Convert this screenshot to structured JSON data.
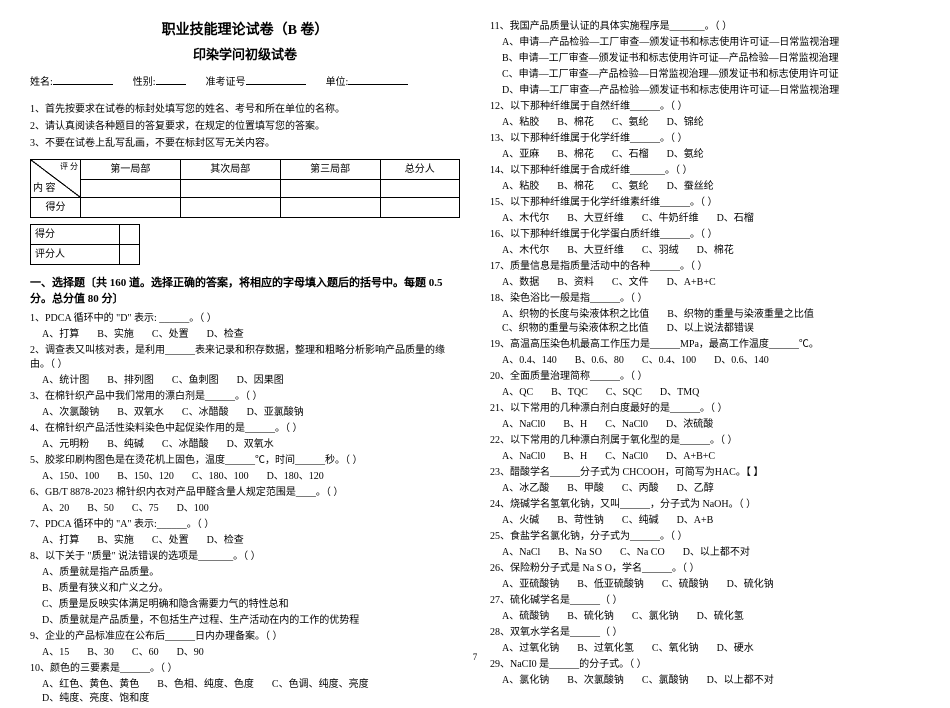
{
  "header": {
    "title1": "职业技能理论试卷（B 卷）",
    "title2": "印染学问初级试卷",
    "meta": {
      "name_label": "姓名:",
      "gender_label": "性别:",
      "exam_id_label": "准考证号",
      "unit_label": "单位:"
    }
  },
  "instructions": {
    "l1": "1、首先按要求在试卷的标封处填写您的姓名、考号和所在单位的名称。",
    "l2": "2、请认真阅读各种题目的答复要求，在规定的位置填写您的答案。",
    "l3": "3、不要在试卷上乱写乱画，不要在标封区写无关内容。"
  },
  "score_table": {
    "h0": "内 容",
    "h1": "第一局部",
    "h2": "其次局部",
    "h3": "第三局部",
    "h4": "总分人",
    "row_score": "得分",
    "pingfen": "评 分",
    "deifen": "得分",
    "pingfenren": "评分人"
  },
  "section1": {
    "title": "一、选择题〔共 160 道。选择正确的答案，将相应的字母填入题后的括号中。每题 0.5 分。总分值 80 分〕"
  },
  "questions_left": [
    {
      "n": "1",
      "t": "PDCA 循环中的 \"D\" 表示: ______。（  ）",
      "opts": [
        "A、打算",
        "B、实施",
        "C、处置",
        "D、检查"
      ]
    },
    {
      "n": "2",
      "t": "调查表又叫核对表，是利用______表来记录和积存数据，整理和粗略分析影响产品质量的缘由。（  ）",
      "opts": [
        "A、统计图",
        "B、排列图",
        "C、鱼刺图",
        "D、因果图"
      ]
    },
    {
      "n": "3",
      "t": "在棉针织产品中我们常用的漂白剂是______。（  ）",
      "opts": [
        "A、次氯酸钠",
        "B、双氧水",
        "C、冰醋酸",
        "D、亚氯酸钠"
      ]
    },
    {
      "n": "4",
      "t": "在棉针织产品活性染料染色中起促染作用的是______。（  ）",
      "opts": [
        "A、元明粉",
        "B、纯碱",
        "C、冰醋酸",
        "D、双氧水"
      ]
    },
    {
      "n": "5",
      "t": "胶浆印刷构图色是在烫花机上固色，温度______℃，时间______秒。（  ）",
      "opts": [
        "A、150、100",
        "B、150、120",
        "C、180、100",
        "D、180、120"
      ]
    },
    {
      "n": "6",
      "t": "GB/T 8878-2023 棉针织内衣对产品甲醛含量人规定范围是____。（  ）",
      "opts": [
        "A、20",
        "B、50",
        "C、75",
        "D、100"
      ]
    },
    {
      "n": "7",
      "t": "PDCA 循环中的 \"A\" 表示:______。（  ）",
      "opts": [
        "A、打算",
        "B、实施",
        "C、处置",
        "D、检查"
      ]
    },
    {
      "n": "8",
      "t": "以下关于 \"质量\" 说法错误的选项是_______。（  ）",
      "opts": [
        "A、质量就是指产品质量。",
        "B、质量有狭义和广义之分。",
        "C、质量是反映实体满足明确和隐含需要力气的特性总和",
        "D、质量就是产品质量，不包括生产过程、生产活动在内的工作的优势程"
      ]
    },
    {
      "n": "9",
      "t": "企业的产品标准应在公布后______日内办理备案。（  ）",
      "opts": [
        "A、15",
        "B、30",
        "C、60",
        "D、90"
      ]
    },
    {
      "n": "10",
      "t": "颜色的三要素是______。（  ）",
      "opts": [
        "A、红色、黄色、黄色",
        "B、色相、纯度、色度",
        "C、色调、纯度、亮度",
        "D、纯度、亮度、饱和度"
      ]
    }
  ],
  "questions_right": [
    {
      "n": "11",
      "t": "我国产品质量认证的具体实施程序是_______。（  ）",
      "opts": [
        "A、申请—产品检验—工厂审查—颁发证书和标志使用许可证—日常监视治理",
        "B、申请—工厂审查—颁发证书和标志使用许可证—产品检验—日常监视治理",
        "C、申请—工厂审查—产品检验—日常监视治理—颁发证书和标志使用许可证",
        "D、申请—工厂审查—产品检验—颁发证书和标志使用许可证—日常监视治理"
      ]
    },
    {
      "n": "12",
      "t": "以下那种纤维属于自然纤维______。（  ）",
      "opts": [
        "A、粘胶",
        "B、棉花",
        "C、氨纶",
        "D、锦纶"
      ]
    },
    {
      "n": "13",
      "t": "以下那种纤维属于化学纤维______。（  ）",
      "opts": [
        "A、亚麻",
        "B、棉花",
        "C、石榴",
        "D、氨纶"
      ]
    },
    {
      "n": "14",
      "t": "以下那种纤维属于合成纤维_______。（  ）",
      "opts": [
        "A、粘胶",
        "B、棉花",
        "C、氨纶",
        "D、蚕丝纶"
      ]
    },
    {
      "n": "15",
      "t": "以下那种纤维属于化学纤维素纤维______。（  ）",
      "opts": [
        "A、木代尔",
        "B、大豆纤维",
        "C、牛奶纤维",
        "D、石榴"
      ]
    },
    {
      "n": "16",
      "t": "以下那种纤维属于化学蛋白质纤维______。（  ）",
      "opts": [
        "A、木代尔",
        "B、大豆纤维",
        "C、羽绒",
        "D、棉花"
      ]
    },
    {
      "n": "17",
      "t": "质量信息是指质量活动中的各种______。（  ）",
      "opts": [
        "A、数据",
        "B、资料",
        "C、文件",
        "D、A+B+C"
      ]
    },
    {
      "n": "18",
      "t": "染色浴比一般是指______。（  ）",
      "opts": [
        "A、织物的长度与染液体积之比值",
        "B、织物的重量与染液重量之比值",
        "C、织物的重量与染液体积之比值",
        "D、以上说法都错误"
      ]
    },
    {
      "n": "19",
      "t": "高温高压染色机最高工作压力是______MPa，最高工作温度______℃。",
      "opts": [
        "A、0.4、140",
        "B、0.6、80",
        "C、0.4、100",
        "D、0.6、140"
      ]
    },
    {
      "n": "20",
      "t": "全面质量治理简称______。（  ）",
      "opts": [
        "A、QC",
        "B、TQC",
        "C、SQC",
        "D、TMQ"
      ]
    },
    {
      "n": "21",
      "t": "以下常用的几种漂白剂白度最好的是______。（  ）",
      "opts": [
        "A、NaCl0",
        "B、H",
        "C、NaCl0",
        "D、浓硫酸"
      ]
    },
    {
      "n": "22",
      "t": "以下常用的几种漂白剂属于氧化型的是______。（  ）",
      "opts": [
        "A、NaCl0",
        "B、H",
        "C、NaCl0",
        "D、A+B+C"
      ]
    },
    {
      "n": "23",
      "t": "醋酸学名______分子式为 CHCOOH，可简写为HAC。【  】",
      "opts": [
        "A、冰乙酸",
        "B、甲酸",
        "C、丙酸",
        "D、乙醇"
      ]
    },
    {
      "n": "24",
      "t": "烧碱学名氢氧化钠，又叫______，分子式为 NaOH。（  ）",
      "opts": [
        "A、火碱",
        "B、苛性钠",
        "C、纯碱",
        "D、A+B"
      ]
    },
    {
      "n": "25",
      "t": "食盐学名氯化钠，分子式为______。（  ）",
      "opts": [
        "A、NaCl",
        "B、Na SO",
        "C、Na CO",
        "D、以上都不对"
      ]
    },
    {
      "n": "26",
      "t": "保险粉分子式是 Na S O，学名______。（  ）",
      "opts": [
        "A、亚硫酸钠",
        "B、低亚硫酸钠",
        "C、硫酸钠",
        "D、硫化钠"
      ]
    },
    {
      "n": "27",
      "t": "硫化碱学名是______（  ）",
      "opts": [
        "A、硫酸钠",
        "B、硫化钠",
        "C、氯化钠",
        "D、硫化氢"
      ]
    },
    {
      "n": "28",
      "t": "双氧水学名是______（  ）",
      "opts": [
        "A、过氧化钠",
        "B、过氧化氢",
        "C、氧化钠",
        "D、硬水"
      ]
    },
    {
      "n": "29",
      "t": "NaCI0 是______的分子式。（  ）",
      "opts": [
        "A、氯化钠",
        "B、次氯酸钠",
        "C、氯酸钠",
        "D、以上都不对"
      ]
    }
  ],
  "page_num": "7"
}
